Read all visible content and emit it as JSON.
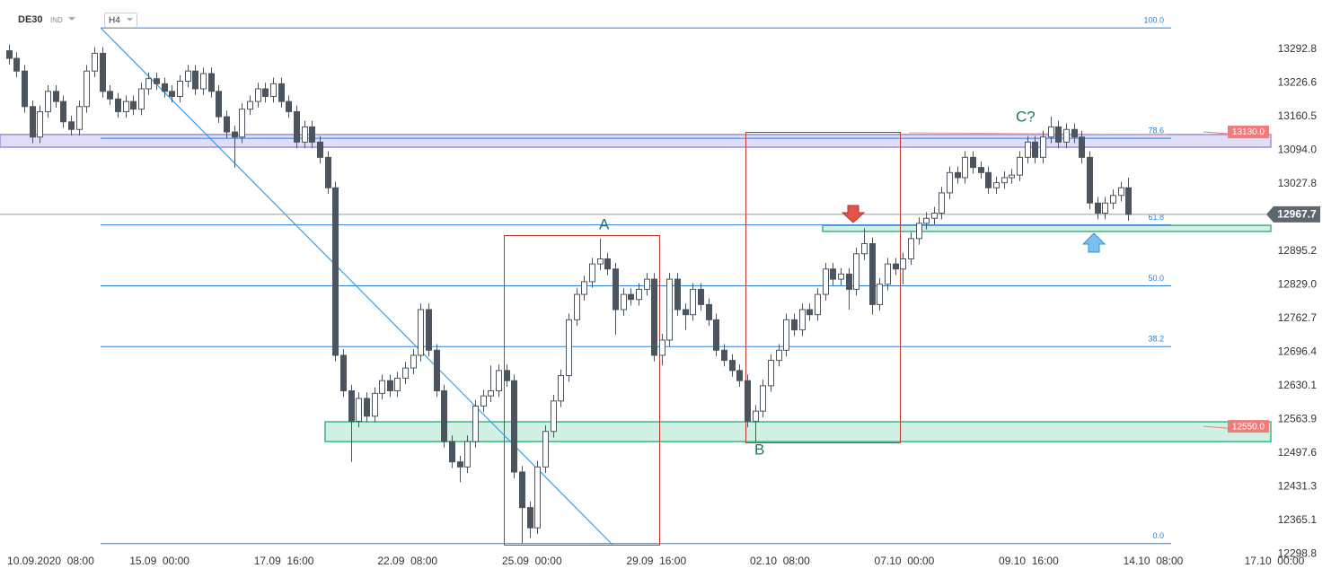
{
  "chart_data": {
    "type": "candlestick",
    "symbol": "DE30",
    "market": "IND",
    "interval": "H4",
    "up_color": "#ffffff",
    "down_color": "#4a5560",
    "wick_color": "#4a5560",
    "xlim": [
      -1,
      168
    ],
    "xticks": [
      {
        "value": 5.4,
        "label": "10.09.2020  08:00"
      },
      {
        "value": 19.4,
        "label": "15.09  00:00"
      },
      {
        "value": 35.4,
        "label": "17.09  16:00"
      },
      {
        "value": 51.3,
        "label": "22.09  08:00"
      },
      {
        "value": 67.3,
        "label": "25.09  00:00"
      },
      {
        "value": 83.3,
        "label": "29.09  16:00"
      },
      {
        "value": 99.2,
        "label": "02.10  08:00"
      },
      {
        "value": 115.2,
        "label": "07.10  00:00"
      },
      {
        "value": 131.2,
        "label": "09.10  16:00"
      },
      {
        "value": 147.2,
        "label": "14.10  08:00"
      },
      {
        "value": 162.8,
        "label": "17.10  00:00"
      }
    ],
    "ylim": [
      12308,
      13390
    ],
    "yticks": [
      13292.8,
      13226.6,
      13160.5,
      {
        "value": 13094,
        "label": "13094.0"
      },
      13027.8,
      12895.2,
      {
        "value": 12829,
        "label": "12829.0"
      },
      12762.7,
      12696.4,
      12630.1,
      12563.9,
      12497.6,
      12431.3,
      12365.1,
      12298.8
    ],
    "open": [
      13290,
      13275,
      13250,
      13180,
      13120,
      13170,
      13210,
      13190,
      13150,
      13135,
      13180,
      13250,
      13285,
      13210,
      13195,
      13170,
      13190,
      13175,
      13215,
      13235,
      13225,
      13210,
      13200,
      13230,
      13250,
      13215,
      13245,
      13210,
      13160,
      13130,
      13120,
      13175,
      13190,
      13215,
      13200,
      13225,
      13190,
      13170,
      13110,
      13140,
      13110,
      13080,
      13020,
      12690,
      12620,
      12560,
      12605,
      12570,
      12615,
      12640,
      12620,
      12645,
      12665,
      12690,
      12780,
      12700,
      12620,
      12520,
      12480,
      12470,
      12520,
      12590,
      12610,
      12620,
      12660,
      12640,
      12460,
      12390,
      12350,
      12470,
      12540,
      12600,
      12650,
      12760,
      12810,
      12835,
      12870,
      12880,
      12860,
      12780,
      12810,
      12800,
      12820,
      12840,
      12690,
      12720,
      12840,
      12780,
      12770,
      12820,
      12790,
      12760,
      12700,
      12680,
      12660,
      12640,
      12560,
      12580,
      12630,
      12680,
      12700,
      12760,
      12740,
      12780,
      12770,
      12810,
      12860,
      12840,
      12850,
      12820,
      12890,
      12910,
      12790,
      12830,
      12870,
      12860,
      12880,
      12920,
      12950,
      12960,
      12970,
      13010,
      13050,
      13040,
      13080,
      13060,
      13050,
      13020,
      13030,
      13040,
      13045,
      13080,
      13110,
      13080,
      13120,
      13140,
      13110,
      13135,
      13120,
      13080,
      12990,
      12970,
      12990,
      13005,
      13020
    ],
    "high": [
      13302,
      13287,
      13262,
      13192,
      13182,
      13222,
      13222,
      13202,
      13162,
      13192,
      13262,
      13297,
      13297,
      13222,
      13207,
      13202,
      13202,
      13227,
      13247,
      13247,
      13237,
      13222,
      13242,
      13262,
      13262,
      13257,
      13257,
      13222,
      13172,
      13142,
      13187,
      13202,
      13227,
      13227,
      13237,
      13237,
      13202,
      13182,
      13152,
      13152,
      13122,
      13092,
      13032,
      12702,
      12632,
      12617,
      12617,
      12627,
      12652,
      12652,
      12657,
      12677,
      12702,
      12792,
      12792,
      12712,
      12632,
      12532,
      12492,
      12532,
      12602,
      12622,
      12670,
      12672,
      12672,
      12652,
      12472,
      12402,
      12482,
      12552,
      12612,
      12662,
      12772,
      12822,
      12847,
      12882,
      12920,
      12892,
      12872,
      12822,
      12822,
      12832,
      12852,
      12852,
      12732,
      12852,
      12852,
      12792,
      12832,
      12832,
      12802,
      12772,
      12712,
      12692,
      12672,
      12652,
      12592,
      12642,
      12692,
      12712,
      12772,
      12772,
      12792,
      12792,
      12822,
      12872,
      12872,
      12862,
      12862,
      12902,
      12940,
      12922,
      12842,
      12882,
      12882,
      12892,
      12932,
      12962,
      12972,
      12982,
      13022,
      13062,
      13062,
      13092,
      13092,
      13072,
      13062,
      13042,
      13052,
      13057,
      13092,
      13122,
      13122,
      13132,
      13160,
      13152,
      13147,
      13147,
      13132,
      13092,
      13002,
      13002,
      13017,
      13032,
      13040
    ],
    "low": [
      13263,
      13238,
      13168,
      13108,
      13108,
      13158,
      13178,
      13138,
      13123,
      13123,
      13168,
      13238,
      13198,
      13183,
      13158,
      13158,
      13163,
      13163,
      13203,
      13213,
      13198,
      13188,
      13188,
      13218,
      13203,
      13203,
      13198,
      13148,
      13118,
      13060,
      13108,
      13163,
      13178,
      13188,
      13188,
      13178,
      13158,
      13098,
      13098,
      13098,
      13068,
      13008,
      12678,
      12608,
      12480,
      12548,
      12558,
      12558,
      12603,
      12608,
      12608,
      12633,
      12653,
      12678,
      12688,
      12608,
      12508,
      12468,
      12440,
      12458,
      12508,
      12578,
      12598,
      12608,
      12628,
      12448,
      12320,
      12330,
      12338,
      12458,
      12528,
      12588,
      12638,
      12748,
      12798,
      12823,
      12858,
      12848,
      12730,
      12768,
      12788,
      12788,
      12808,
      12678,
      12670,
      12708,
      12768,
      12740,
      12758,
      12778,
      12748,
      12688,
      12668,
      12648,
      12628,
      12548,
      12520,
      12568,
      12618,
      12668,
      12688,
      12728,
      12728,
      12758,
      12758,
      12798,
      12828,
      12828,
      12780,
      12808,
      12878,
      12770,
      12778,
      12818,
      12848,
      12830,
      12868,
      12908,
      12938,
      12948,
      12958,
      12998,
      13028,
      13028,
      13048,
      13038,
      13008,
      13008,
      13018,
      13028,
      13033,
      13068,
      13068,
      13068,
      13108,
      13098,
      13098,
      13108,
      13068,
      12978,
      12958,
      12958,
      12978,
      12993,
      12955
    ],
    "close": [
      13275,
      13250,
      13180,
      13120,
      13170,
      13210,
      13190,
      13150,
      13135,
      13180,
      13250,
      13285,
      13210,
      13195,
      13170,
      13190,
      13175,
      13215,
      13235,
      13225,
      13210,
      13200,
      13230,
      13250,
      13215,
      13245,
      13210,
      13160,
      13130,
      13120,
      13175,
      13190,
      13215,
      13200,
      13225,
      13190,
      13170,
      13110,
      13140,
      13110,
      13080,
      13020,
      12690,
      12620,
      12560,
      12605,
      12570,
      12615,
      12640,
      12620,
      12645,
      12665,
      12690,
      12780,
      12700,
      12620,
      12520,
      12480,
      12470,
      12520,
      12590,
      12610,
      12620,
      12660,
      12640,
      12460,
      12390,
      12350,
      12470,
      12540,
      12600,
      12650,
      12760,
      12810,
      12835,
      12870,
      12880,
      12860,
      12780,
      12810,
      12800,
      12820,
      12840,
      12690,
      12720,
      12840,
      12780,
      12770,
      12820,
      12790,
      12760,
      12700,
      12680,
      12660,
      12640,
      12560,
      12580,
      12630,
      12680,
      12700,
      12760,
      12740,
      12780,
      12770,
      12810,
      12860,
      12840,
      12850,
      12820,
      12890,
      12910,
      12790,
      12830,
      12870,
      12860,
      12880,
      12920,
      12950,
      12960,
      12970,
      13010,
      13050,
      13040,
      13080,
      13060,
      13050,
      13020,
      13030,
      13040,
      13045,
      13080,
      13110,
      13080,
      13120,
      13140,
      13110,
      13135,
      13120,
      13080,
      12990,
      12970,
      12990,
      13005,
      13020,
      12967.7
    ],
    "fib_color": "#2d7fd3",
    "fib_levels": [
      {
        "label": "100.0",
        "price": 13335
      },
      {
        "label": "78.6",
        "price": 13117.6
      },
      {
        "label": "61.8",
        "price": 12946.9
      },
      {
        "label": "50.0",
        "price": 12827
      },
      {
        "label": "38.2",
        "price": 12707.1
      },
      {
        "label": "0.0",
        "price": 12319
      }
    ],
    "zones": [
      {
        "from": 13100,
        "to": 13125,
        "color": "#d9d3f5",
        "border": "#9c90d8",
        "tag": {
          "value": 13130,
          "label": "13130.0"
        }
      },
      {
        "from": 12520,
        "to": 12559,
        "color": "#c6eddd",
        "border": "#38b585",
        "tag": {
          "value": 12550,
          "label": "12550.0"
        }
      },
      {
        "from": 12934,
        "to": 12946,
        "color": "#c6eddd",
        "border": "#38b585"
      }
    ],
    "last_price": 12967.7,
    "annotations": [
      {
        "text": "A"
      },
      {
        "text": "B"
      },
      {
        "text": "C?"
      }
    ]
  }
}
